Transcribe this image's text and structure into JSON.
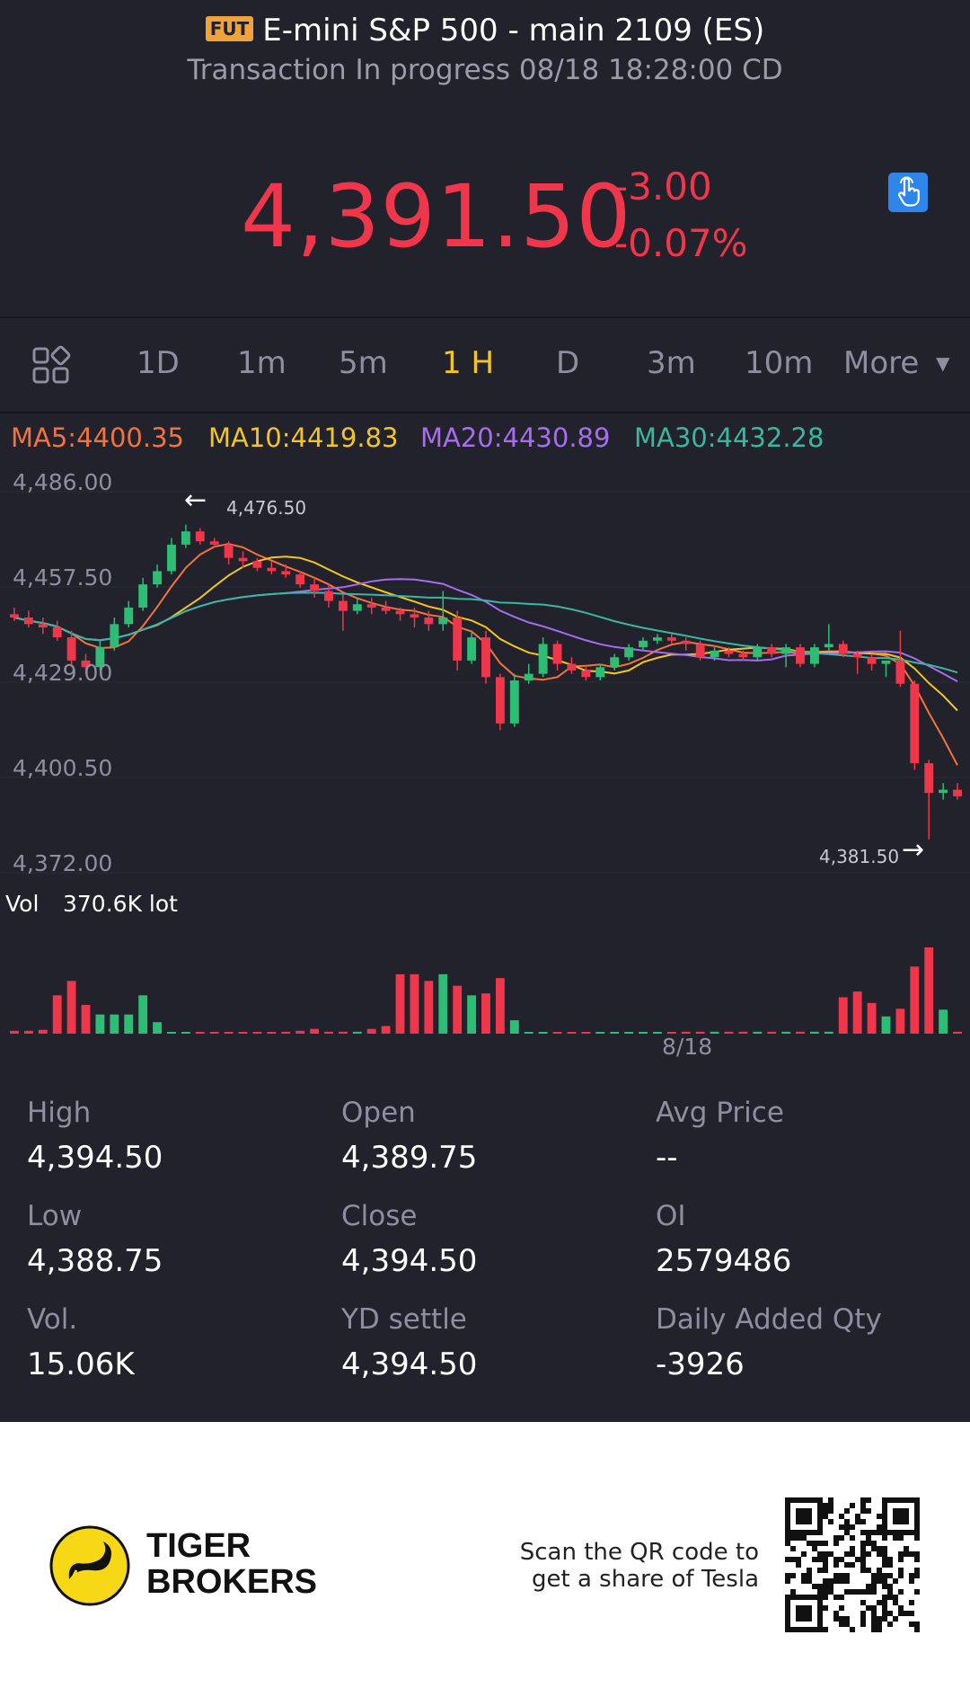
{
  "header": {
    "badge": "FUT",
    "title": "E-mini S&P 500 - main 2109 (ES)",
    "subtitle": "Transaction In progress 08/18 18:28:00 CD",
    "price": "4,391.50",
    "change_abs": "-3.00",
    "change_pct": "-0.07%"
  },
  "tabs": [
    "1D",
    "1m",
    "5m",
    "1 H",
    "D",
    "3m",
    "10m",
    "More"
  ],
  "active_tab": "1 H",
  "ma": {
    "ma5": "MA5:4400.35",
    "ma10": "MA10:4419.83",
    "ma20": "MA20:4430.89",
    "ma30": "MA30:4432.28"
  },
  "chart_data": {
    "type": "candlestick",
    "y_ticks": [
      "4,486.00",
      "4,457.50",
      "4,429.00",
      "4,400.50",
      "4,372.00"
    ],
    "ylim": [
      4372,
      4486
    ],
    "max_marker": "4,476.50",
    "min_marker": "4,381.50",
    "volume_label": "Vol",
    "volume_value": "370.6K lot",
    "x_label": "8/18",
    "colors": {
      "up": "#2dbd74",
      "down": "#f0364a",
      "ma5": "#f4723d",
      "ma10": "#f2c523",
      "ma20": "#a86cf0",
      "ma30": "#3bb7a0"
    },
    "candles": [
      [
        4449,
        4451,
        4447,
        4448
      ],
      [
        4448,
        4450,
        4445,
        4446
      ],
      [
        4446,
        4448,
        4443,
        4445
      ],
      [
        4445,
        4447,
        4441,
        4442
      ],
      [
        4442,
        4444,
        4433,
        4435
      ],
      [
        4435,
        4437,
        4431,
        4433
      ],
      [
        4433,
        4441,
        4432,
        4439
      ],
      [
        4439,
        4448,
        4438,
        4446
      ],
      [
        4446,
        4453,
        4445,
        4451
      ],
      [
        4451,
        4460,
        4450,
        4458
      ],
      [
        4458,
        4464,
        4457,
        4462
      ],
      [
        4462,
        4472,
        4461,
        4470
      ],
      [
        4470,
        4476,
        4469,
        4474
      ],
      [
        4474,
        4475,
        4470,
        4471
      ],
      [
        4471,
        4472,
        4469,
        4470
      ],
      [
        4470,
        4471,
        4464,
        4466
      ],
      [
        4466,
        4468,
        4463,
        4465
      ],
      [
        4465,
        4466,
        4462,
        4463
      ],
      [
        4463,
        4465,
        4461,
        4462
      ],
      [
        4462,
        4464,
        4460,
        4461
      ],
      [
        4461,
        4462,
        4457,
        4458
      ],
      [
        4458,
        4460,
        4454,
        4456
      ],
      [
        4456,
        4458,
        4451,
        4453
      ],
      [
        4453,
        4455,
        4444,
        4450
      ],
      [
        4450,
        4454,
        4449,
        4452
      ],
      [
        4452,
        4454,
        4449,
        4451
      ],
      [
        4451,
        4453,
        4449,
        4450
      ],
      [
        4450,
        4451,
        4447,
        4449
      ],
      [
        4449,
        4451,
        4445,
        4448
      ],
      [
        4448,
        4450,
        4444,
        4446
      ],
      [
        4446,
        4456,
        4444,
        4448
      ],
      [
        4448,
        4450,
        4432,
        4435
      ],
      [
        4435,
        4444,
        4434,
        4442
      ],
      [
        4442,
        4444,
        4428,
        4430
      ],
      [
        4430,
        4431,
        4414,
        4416
      ],
      [
        4416,
        4431,
        4415,
        4429
      ],
      [
        4429,
        4434,
        4428,
        4431
      ],
      [
        4431,
        4442,
        4430,
        4440
      ],
      [
        4440,
        4441,
        4432,
        4434
      ],
      [
        4434,
        4436,
        4431,
        4432
      ],
      [
        4432,
        4433,
        4429,
        4430
      ],
      [
        4430,
        4434,
        4429,
        4433
      ],
      [
        4433,
        4437,
        4432,
        4436
      ],
      [
        4436,
        4440,
        4435,
        4439
      ],
      [
        4439,
        4442,
        4438,
        4441
      ],
      [
        4441,
        4443,
        4440,
        4442
      ],
      [
        4442,
        4443,
        4440,
        4441
      ],
      [
        4441,
        4442,
        4438,
        4440
      ],
      [
        4440,
        4441,
        4435,
        4436
      ],
      [
        4436,
        4439,
        4435,
        4438
      ],
      [
        4438,
        4439,
        4436,
        4437
      ],
      [
        4437,
        4438,
        4435,
        4436
      ],
      [
        4436,
        4440,
        4435,
        4439
      ],
      [
        4439,
        4440,
        4436,
        4437
      ],
      [
        4437,
        4440,
        4433,
        4439
      ],
      [
        4439,
        4440,
        4433,
        4434
      ],
      [
        4434,
        4440,
        4433,
        4439
      ],
      [
        4439,
        4446,
        4438,
        4440
      ],
      [
        4440,
        4441,
        4436,
        4437
      ],
      [
        4437,
        4438,
        4431,
        4436
      ],
      [
        4436,
        4437,
        4432,
        4434
      ],
      [
        4434,
        4435,
        4430,
        4435
      ],
      [
        4435,
        4444,
        4427,
        4428
      ],
      [
        4428,
        4429,
        4402,
        4404
      ],
      [
        4404,
        4405,
        4381,
        4395
      ],
      [
        4395,
        4398,
        4393,
        4396
      ],
      [
        4396,
        4398,
        4393,
        4394
      ]
    ],
    "volumes": [
      3,
      3,
      4,
      40,
      55,
      30,
      20,
      20,
      20,
      40,
      12,
      1,
      1,
      1,
      1,
      1,
      1,
      1,
      1,
      2,
      3,
      5,
      2,
      2,
      2,
      5,
      8,
      62,
      62,
      55,
      62,
      50,
      40,
      42,
      58,
      14,
      1,
      1,
      1,
      1,
      1,
      1,
      1,
      1,
      1,
      1,
      1,
      2,
      2,
      2,
      2,
      2,
      2,
      2,
      2,
      2,
      2,
      2,
      38,
      44,
      32,
      18,
      26,
      70,
      90,
      25,
      2
    ]
  },
  "stats": [
    {
      "label": "High",
      "value": "4,394.50"
    },
    {
      "label": "Open",
      "value": "4,389.75"
    },
    {
      "label": "Avg Price",
      "value": "--"
    },
    {
      "label": "Low",
      "value": "4,388.75"
    },
    {
      "label": "Close",
      "value": "4,394.50"
    },
    {
      "label": "OI",
      "value": "2579486"
    },
    {
      "label": "Vol.",
      "value": "15.06K"
    },
    {
      "label": "YD settle",
      "value": "4,394.50"
    },
    {
      "label": "Daily Added Qty",
      "value": "-3926"
    }
  ],
  "footer": {
    "brand_line1": "TIGER",
    "brand_line2": "BROKERS",
    "promo_line1": "Scan the QR code to",
    "promo_line2": "get a share of Tesla"
  }
}
